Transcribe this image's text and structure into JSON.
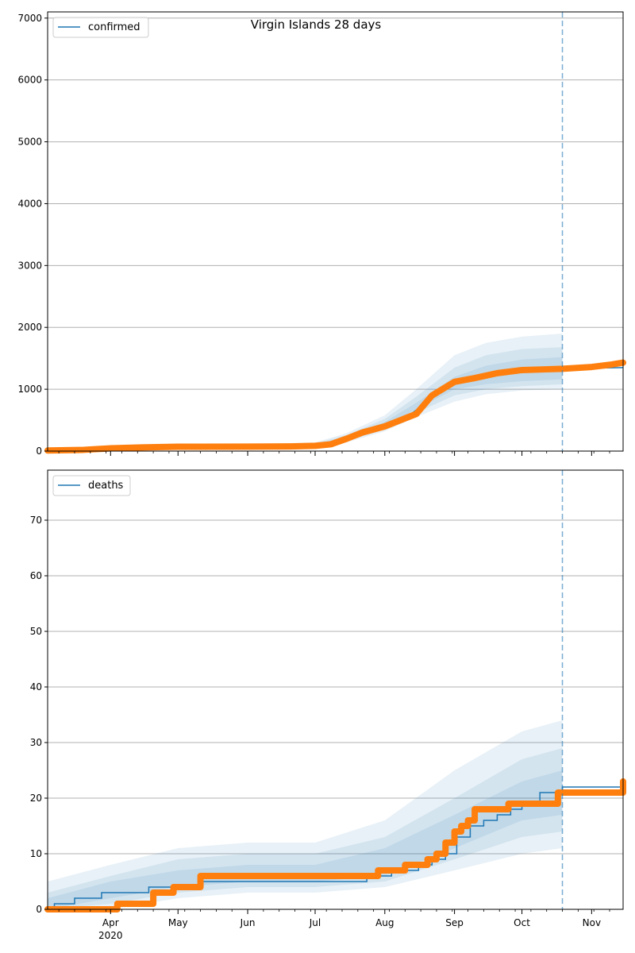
{
  "figure": {
    "title": "Virgin Islands 28 days"
  },
  "colors": {
    "model": "#1f77b4",
    "observed": "#ff7f0e",
    "grid": "#b0b0b0",
    "band": "#1f77b4"
  },
  "x_ticks": [
    {
      "date": "2020-04-01",
      "label": "Apr",
      "year": "2020"
    },
    {
      "date": "2020-05-01",
      "label": "May"
    },
    {
      "date": "2020-06-01",
      "label": "Jun"
    },
    {
      "date": "2020-07-01",
      "label": "Jul"
    },
    {
      "date": "2020-08-01",
      "label": "Aug"
    },
    {
      "date": "2020-09-01",
      "label": "Sep"
    },
    {
      "date": "2020-10-01",
      "label": "Oct"
    },
    {
      "date": "2020-11-01",
      "label": "Nov"
    }
  ],
  "chart_data": [
    {
      "type": "line",
      "legend": [
        "confirmed"
      ],
      "legend_position": "top-left",
      "grid": "y",
      "xlim": [
        "2020-03-04",
        "2020-11-15"
      ],
      "ylim": [
        0,
        7100
      ],
      "yticks": [
        0,
        1000,
        2000,
        3000,
        4000,
        5000,
        6000,
        7000
      ],
      "forecast_start": "2020-10-19",
      "series": [
        {
          "name": "confirmed",
          "x": [
            "2020-03-04",
            "2020-04-01",
            "2020-05-01",
            "2020-06-01",
            "2020-07-01",
            "2020-07-10",
            "2020-07-20",
            "2020-08-01",
            "2020-08-10",
            "2020-08-20",
            "2020-09-01",
            "2020-09-10",
            "2020-09-20",
            "2020-10-01",
            "2020-10-10",
            "2020-10-19",
            "2020-11-01",
            "2020-11-15"
          ],
          "y": [
            10,
            40,
            70,
            75,
            80,
            120,
            250,
            400,
            530,
            800,
            1100,
            1180,
            1240,
            1300,
            1320,
            1330,
            1340,
            1350
          ]
        }
      ],
      "observed": {
        "x": [
          "2020-03-04",
          "2020-03-20",
          "2020-04-01",
          "2020-04-15",
          "2020-05-01",
          "2020-06-01",
          "2020-06-20",
          "2020-07-01",
          "2020-07-08",
          "2020-07-15",
          "2020-07-22",
          "2020-08-01",
          "2020-08-08",
          "2020-08-15",
          "2020-08-22",
          "2020-09-01",
          "2020-09-10",
          "2020-09-20",
          "2020-10-01",
          "2020-10-10",
          "2020-10-19",
          "2020-11-01",
          "2020-11-10",
          "2020-11-15"
        ],
        "y": [
          10,
          20,
          45,
          60,
          70,
          72,
          75,
          85,
          110,
          200,
          300,
          400,
          500,
          600,
          900,
          1120,
          1180,
          1260,
          1310,
          1320,
          1330,
          1360,
          1400,
          1430
        ]
      },
      "bands": [
        {
          "x": [
            "2020-03-04",
            "2020-06-01",
            "2020-07-01",
            "2020-07-15",
            "2020-08-01",
            "2020-08-15",
            "2020-09-01",
            "2020-09-15",
            "2020-10-01",
            "2020-10-19"
          ],
          "lower": [
            0,
            60,
            70,
            140,
            320,
            550,
            800,
            920,
            980,
            1000
          ],
          "upper": [
            30,
            110,
            140,
            290,
            580,
            1000,
            1550,
            1750,
            1850,
            1900
          ]
        },
        {
          "x": [
            "2020-03-04",
            "2020-06-01",
            "2020-07-01",
            "2020-07-15",
            "2020-08-01",
            "2020-08-15",
            "2020-09-01",
            "2020-09-15",
            "2020-10-01",
            "2020-10-19"
          ],
          "lower": [
            2,
            65,
            75,
            160,
            350,
            620,
            900,
            1000,
            1050,
            1080
          ],
          "upper": [
            25,
            100,
            125,
            260,
            520,
            880,
            1350,
            1550,
            1650,
            1680
          ]
        },
        {
          "x": [
            "2020-03-04",
            "2020-06-01",
            "2020-07-01",
            "2020-07-15",
            "2020-08-01",
            "2020-08-15",
            "2020-09-01",
            "2020-09-15",
            "2020-10-01",
            "2020-10-19"
          ],
          "lower": [
            5,
            68,
            78,
            180,
            380,
            680,
            1000,
            1080,
            1130,
            1160
          ],
          "upper": [
            20,
            90,
            110,
            230,
            470,
            780,
            1200,
            1380,
            1480,
            1520
          ]
        }
      ]
    },
    {
      "type": "line",
      "legend": [
        "deaths"
      ],
      "legend_position": "top-left",
      "grid": "y",
      "xlim": [
        "2020-03-04",
        "2020-11-15"
      ],
      "ylim": [
        0,
        79
      ],
      "yticks": [
        0,
        10,
        20,
        30,
        40,
        50,
        60,
        70
      ],
      "forecast_start": "2020-10-19",
      "series": [
        {
          "name": "deaths",
          "x": [
            "2020-03-04",
            "2020-03-07",
            "2020-03-16",
            "2020-03-28",
            "2020-04-18",
            "2020-05-10",
            "2020-07-10",
            "2020-07-24",
            "2020-08-04",
            "2020-08-16",
            "2020-08-22",
            "2020-08-28",
            "2020-09-02",
            "2020-09-08",
            "2020-09-14",
            "2020-09-20",
            "2020-09-26",
            "2020-10-01",
            "2020-10-09",
            "2020-10-19",
            "2020-10-30",
            "2020-11-15"
          ],
          "y": [
            0,
            1,
            2,
            3,
            4,
            5,
            5,
            6,
            7,
            8,
            9,
            10,
            13,
            15,
            16,
            17,
            18,
            19,
            21,
            22,
            22,
            22
          ]
        }
      ],
      "observed": {
        "x": [
          "2020-03-04",
          "2020-04-04",
          "2020-04-17",
          "2020-04-20",
          "2020-04-29",
          "2020-05-11",
          "2020-07-22",
          "2020-07-29",
          "2020-08-10",
          "2020-08-20",
          "2020-08-24",
          "2020-08-28",
          "2020-09-01",
          "2020-09-04",
          "2020-09-07",
          "2020-09-10",
          "2020-09-25",
          "2020-10-17",
          "2020-11-03",
          "2020-11-15"
        ],
        "y": [
          0,
          1,
          1,
          3,
          4,
          6,
          6,
          7,
          8,
          9,
          10,
          12,
          14,
          15,
          16,
          18,
          19,
          21,
          21,
          23
        ]
      },
      "bands": [
        {
          "x": [
            "2020-03-04",
            "2020-04-01",
            "2020-05-01",
            "2020-06-01",
            "2020-07-01",
            "2020-08-01",
            "2020-09-01",
            "2020-10-01",
            "2020-10-19"
          ],
          "lower": [
            0,
            0,
            2,
            3,
            3,
            4,
            7,
            10,
            11
          ],
          "upper": [
            5,
            8,
            11,
            12,
            12,
            16,
            25,
            32,
            34
          ]
        },
        {
          "x": [
            "2020-03-04",
            "2020-04-01",
            "2020-05-01",
            "2020-06-01",
            "2020-07-01",
            "2020-08-01",
            "2020-09-01",
            "2020-10-01",
            "2020-10-19"
          ],
          "lower": [
            0,
            1,
            3,
            4,
            4,
            5,
            9,
            13,
            14
          ],
          "upper": [
            3,
            6,
            9,
            10,
            10,
            13,
            20,
            27,
            29
          ]
        },
        {
          "x": [
            "2020-03-04",
            "2020-04-01",
            "2020-05-01",
            "2020-06-01",
            "2020-07-01",
            "2020-08-01",
            "2020-09-01",
            "2020-10-01",
            "2020-10-19"
          ],
          "lower": [
            0,
            2,
            4,
            5,
            5,
            6,
            11,
            16,
            17
          ],
          "upper": [
            2,
            5,
            7,
            8,
            8,
            11,
            17,
            23,
            25
          ]
        }
      ]
    }
  ]
}
